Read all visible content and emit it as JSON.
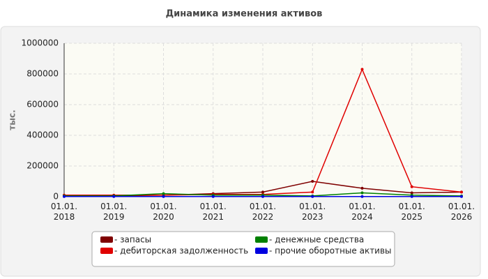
{
  "chart_data": {
    "type": "line",
    "title": "Динамика изменения активов",
    "y_label": "тыс.",
    "categories": [
      "01.01.\n2018",
      "01.01.\n2019",
      "01.01.\n2020",
      "01.01.\n2021",
      "01.01.\n2022",
      "01.01.\n2023",
      "01.01.\n2024",
      "01.01.\n2025",
      "01.01.\n2026"
    ],
    "series": [
      {
        "name": "- запасы",
        "color": "#7f0000",
        "values": [
          5000,
          5000,
          10000,
          20000,
          30000,
          100000,
          55000,
          25000,
          30000
        ]
      },
      {
        "name": "- дебиторская задолженность",
        "color": "#e00000",
        "values": [
          10000,
          10000,
          10000,
          15000,
          15000,
          30000,
          830000,
          65000,
          30000
        ]
      },
      {
        "name": "- денежные средства",
        "color": "#008000",
        "values": [
          5000,
          5000,
          20000,
          10000,
          10000,
          5000,
          25000,
          10000,
          5000
        ]
      },
      {
        "name": "- прочие оборотные активы",
        "color": "#0000e0",
        "values": [
          1000,
          1000,
          1000,
          1000,
          1000,
          1000,
          1000,
          1000,
          1000
        ]
      }
    ],
    "ylim": [
      0,
      1000000
    ],
    "yticks": [
      0,
      200000,
      400000,
      600000,
      800000,
      1000000
    ],
    "grid": true
  }
}
